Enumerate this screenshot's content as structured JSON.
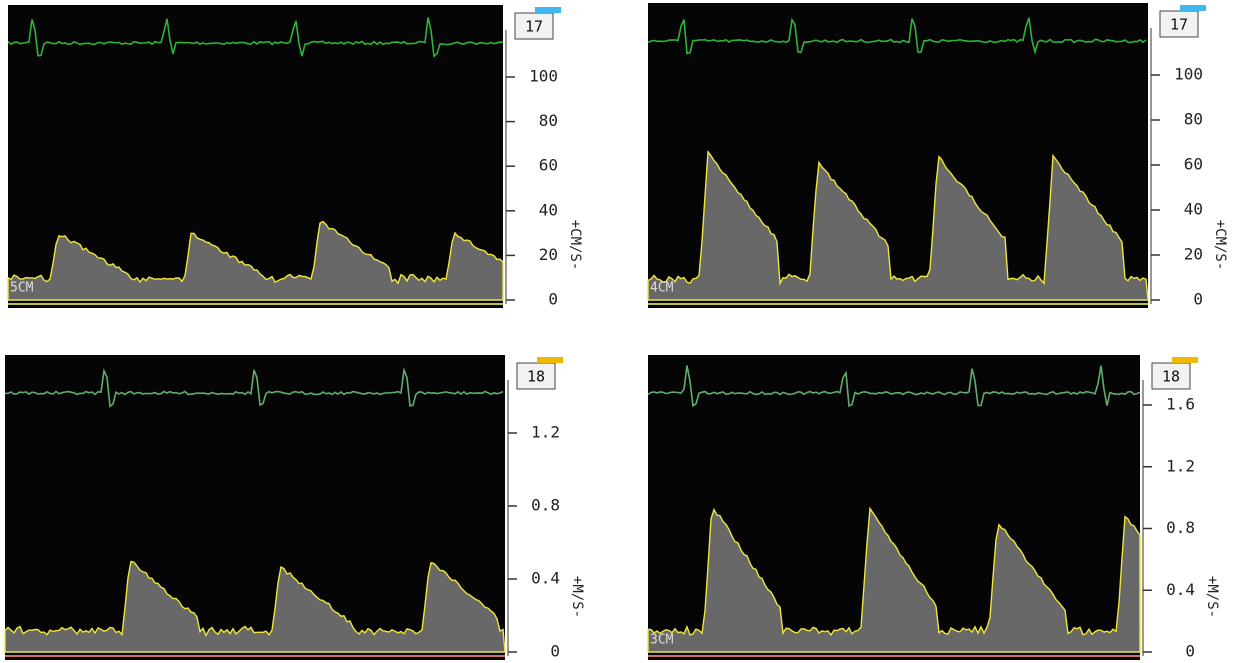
{
  "panels": [
    {
      "badge": "17",
      "ticks": [
        "100",
        "80",
        "60",
        "40",
        "20",
        "0"
      ],
      "unit": "+CM/S-",
      "depth": "5CM"
    },
    {
      "badge": "17",
      "ticks": [
        "100",
        "80",
        "60",
        "40",
        "20",
        "0"
      ],
      "unit": "+CM/S-",
      "depth": "4CM"
    },
    {
      "badge": "18",
      "ticks": [
        "1.2",
        "0.8",
        "0.4",
        "0"
      ],
      "unit": "+M/S-"
    },
    {
      "badge": "18",
      "ticks": [
        "1.6",
        "1.2",
        "0.8",
        "0.4",
        "0"
      ],
      "unit": "+M/S-",
      "depth": "3CM"
    }
  ]
}
